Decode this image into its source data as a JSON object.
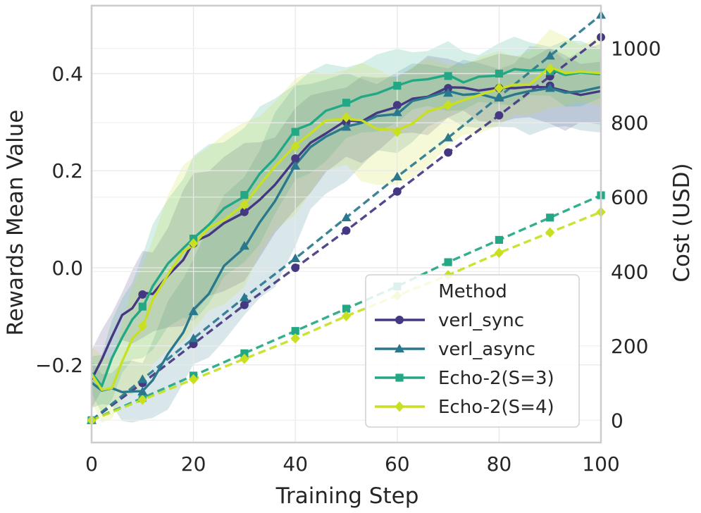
{
  "chart_data": {
    "type": "line",
    "xlabel": "Training Step",
    "ylabel_left": "Rewards Mean Value",
    "ylabel_right": "Cost (USD)",
    "xlim": [
      0,
      100
    ],
    "ylim_left": [
      -0.36,
      0.54
    ],
    "ylim_right": [
      -60,
      1115
    ],
    "x_ticks": [
      0,
      20,
      40,
      60,
      80,
      100
    ],
    "y_left_ticks": [
      -0.2,
      0.0,
      0.2,
      0.4
    ],
    "y_left_tick_labels": [
      "−0.2",
      "0.0",
      "0.2",
      "0.4"
    ],
    "y_right_ticks": [
      0,
      200,
      400,
      600,
      800,
      1000
    ],
    "grid": true,
    "legend": {
      "title": "Method",
      "placement": "lower-right"
    },
    "x": [
      0,
      10,
      20,
      30,
      40,
      50,
      60,
      70,
      80,
      90,
      100
    ],
    "series": [
      {
        "name": "verl_sync",
        "color": "#453781",
        "marker": "circle",
        "reward_x": [
          0,
          2,
          4,
          6,
          8,
          10,
          12,
          15,
          18,
          20,
          23,
          26,
          30,
          33,
          36,
          40,
          43,
          46,
          50,
          53,
          56,
          60,
          63,
          66,
          70,
          73,
          76,
          80,
          83,
          86,
          90,
          93,
          96,
          100
        ],
        "reward": [
          -0.23,
          -0.19,
          -0.14,
          -0.1,
          -0.08,
          -0.055,
          -0.05,
          -0.02,
          0.02,
          0.05,
          0.07,
          0.09,
          0.115,
          0.14,
          0.17,
          0.225,
          0.255,
          0.28,
          0.3,
          0.305,
          0.315,
          0.335,
          0.345,
          0.355,
          0.37,
          0.372,
          0.365,
          0.37,
          0.372,
          0.37,
          0.375,
          0.36,
          0.36,
          0.36
        ],
        "reward_band": [
          0.06,
          0.05,
          0.05,
          0.06,
          0.07,
          0.08,
          0.09,
          0.11,
          0.13,
          0.14,
          0.14,
          0.14,
          0.13,
          0.12,
          0.11,
          0.1,
          0.09,
          0.09,
          0.08,
          0.08,
          0.07,
          0.07,
          0.07,
          0.07,
          0.06,
          0.06,
          0.06,
          0.06,
          0.07,
          0.07,
          0.07,
          0.07,
          0.07,
          0.07
        ],
        "cost": [
          0,
          100,
          205,
          310,
          410,
          510,
          615,
          720,
          820,
          925,
          1030
        ]
      },
      {
        "name": "verl_async",
        "color": "#2a788e",
        "marker": "triangle",
        "reward_x": [
          0,
          2,
          4,
          6,
          8,
          10,
          12,
          15,
          18,
          20,
          23,
          26,
          30,
          33,
          36,
          40,
          43,
          46,
          50,
          53,
          56,
          60,
          63,
          66,
          70,
          73,
          76,
          80,
          83,
          86,
          90,
          93,
          96,
          100
        ],
        "reward": [
          -0.24,
          -0.25,
          -0.25,
          -0.255,
          -0.255,
          -0.255,
          -0.23,
          -0.18,
          -0.13,
          -0.09,
          -0.05,
          0.0,
          0.045,
          0.09,
          0.14,
          0.21,
          0.25,
          0.27,
          0.29,
          0.3,
          0.31,
          0.32,
          0.34,
          0.355,
          0.36,
          0.36,
          0.355,
          0.35,
          0.355,
          0.365,
          0.37,
          0.36,
          0.365,
          0.37
        ],
        "reward_band": [
          0.04,
          0.04,
          0.04,
          0.05,
          0.06,
          0.07,
          0.08,
          0.1,
          0.11,
          0.12,
          0.13,
          0.14,
          0.15,
          0.16,
          0.17,
          0.16,
          0.14,
          0.12,
          0.1,
          0.09,
          0.08,
          0.08,
          0.07,
          0.07,
          0.06,
          0.06,
          0.06,
          0.07,
          0.07,
          0.08,
          0.08,
          0.08,
          0.08,
          0.08
        ],
        "cost": [
          0,
          110,
          220,
          330,
          435,
          545,
          655,
          760,
          870,
          980,
          1090
        ]
      },
      {
        "name": "Echo-2(S=3)",
        "color": "#22a884",
        "marker": "square",
        "reward_x": [
          0,
          2,
          4,
          6,
          8,
          10,
          12,
          15,
          18,
          20,
          23,
          26,
          30,
          33,
          36,
          40,
          43,
          46,
          50,
          53,
          56,
          60,
          63,
          66,
          70,
          73,
          76,
          80,
          83,
          86,
          90,
          93,
          96,
          100
        ],
        "reward": [
          -0.22,
          -0.24,
          -0.19,
          -0.14,
          -0.11,
          -0.08,
          -0.04,
          0.01,
          0.04,
          0.06,
          0.09,
          0.12,
          0.15,
          0.19,
          0.23,
          0.28,
          0.3,
          0.32,
          0.34,
          0.35,
          0.36,
          0.375,
          0.385,
          0.39,
          0.395,
          0.385,
          0.39,
          0.4,
          0.405,
          0.41,
          0.405,
          0.4,
          0.4,
          0.4
        ],
        "reward_band": [
          0.05,
          0.06,
          0.07,
          0.08,
          0.09,
          0.1,
          0.12,
          0.14,
          0.15,
          0.16,
          0.16,
          0.15,
          0.14,
          0.13,
          0.12,
          0.11,
          0.1,
          0.09,
          0.08,
          0.08,
          0.07,
          0.07,
          0.07,
          0.06,
          0.06,
          0.06,
          0.06,
          0.06,
          0.06,
          0.06,
          0.06,
          0.06,
          0.06,
          0.06
        ],
        "cost": [
          0,
          60,
          120,
          180,
          240,
          300,
          360,
          425,
          485,
          545,
          605
        ]
      },
      {
        "name": "Echo-2(S=4)",
        "color": "#c8e020",
        "marker": "diamond",
        "reward_x": [
          0,
          2,
          4,
          6,
          8,
          10,
          12,
          15,
          18,
          20,
          23,
          26,
          30,
          33,
          36,
          40,
          43,
          46,
          50,
          53,
          56,
          60,
          63,
          66,
          70,
          73,
          76,
          80,
          83,
          86,
          90,
          93,
          96,
          100
        ],
        "reward": [
          -0.22,
          -0.25,
          -0.25,
          -0.19,
          -0.15,
          -0.12,
          -0.07,
          -0.01,
          0.03,
          0.05,
          0.08,
          0.1,
          0.13,
          0.17,
          0.21,
          0.25,
          0.28,
          0.3,
          0.31,
          0.3,
          0.29,
          0.28,
          0.3,
          0.32,
          0.335,
          0.345,
          0.355,
          0.37,
          0.375,
          0.38,
          0.41,
          0.405,
          0.4,
          0.405
        ],
        "reward_band": [
          0.05,
          0.06,
          0.07,
          0.08,
          0.1,
          0.12,
          0.14,
          0.16,
          0.17,
          0.18,
          0.18,
          0.17,
          0.16,
          0.15,
          0.14,
          0.13,
          0.12,
          0.11,
          0.1,
          0.11,
          0.12,
          0.12,
          0.11,
          0.1,
          0.09,
          0.08,
          0.07,
          0.07,
          0.07,
          0.07,
          0.07,
          0.07,
          0.07,
          0.07
        ],
        "cost": [
          0,
          55,
          110,
          165,
          220,
          280,
          335,
          390,
          450,
          505,
          560
        ]
      }
    ]
  }
}
